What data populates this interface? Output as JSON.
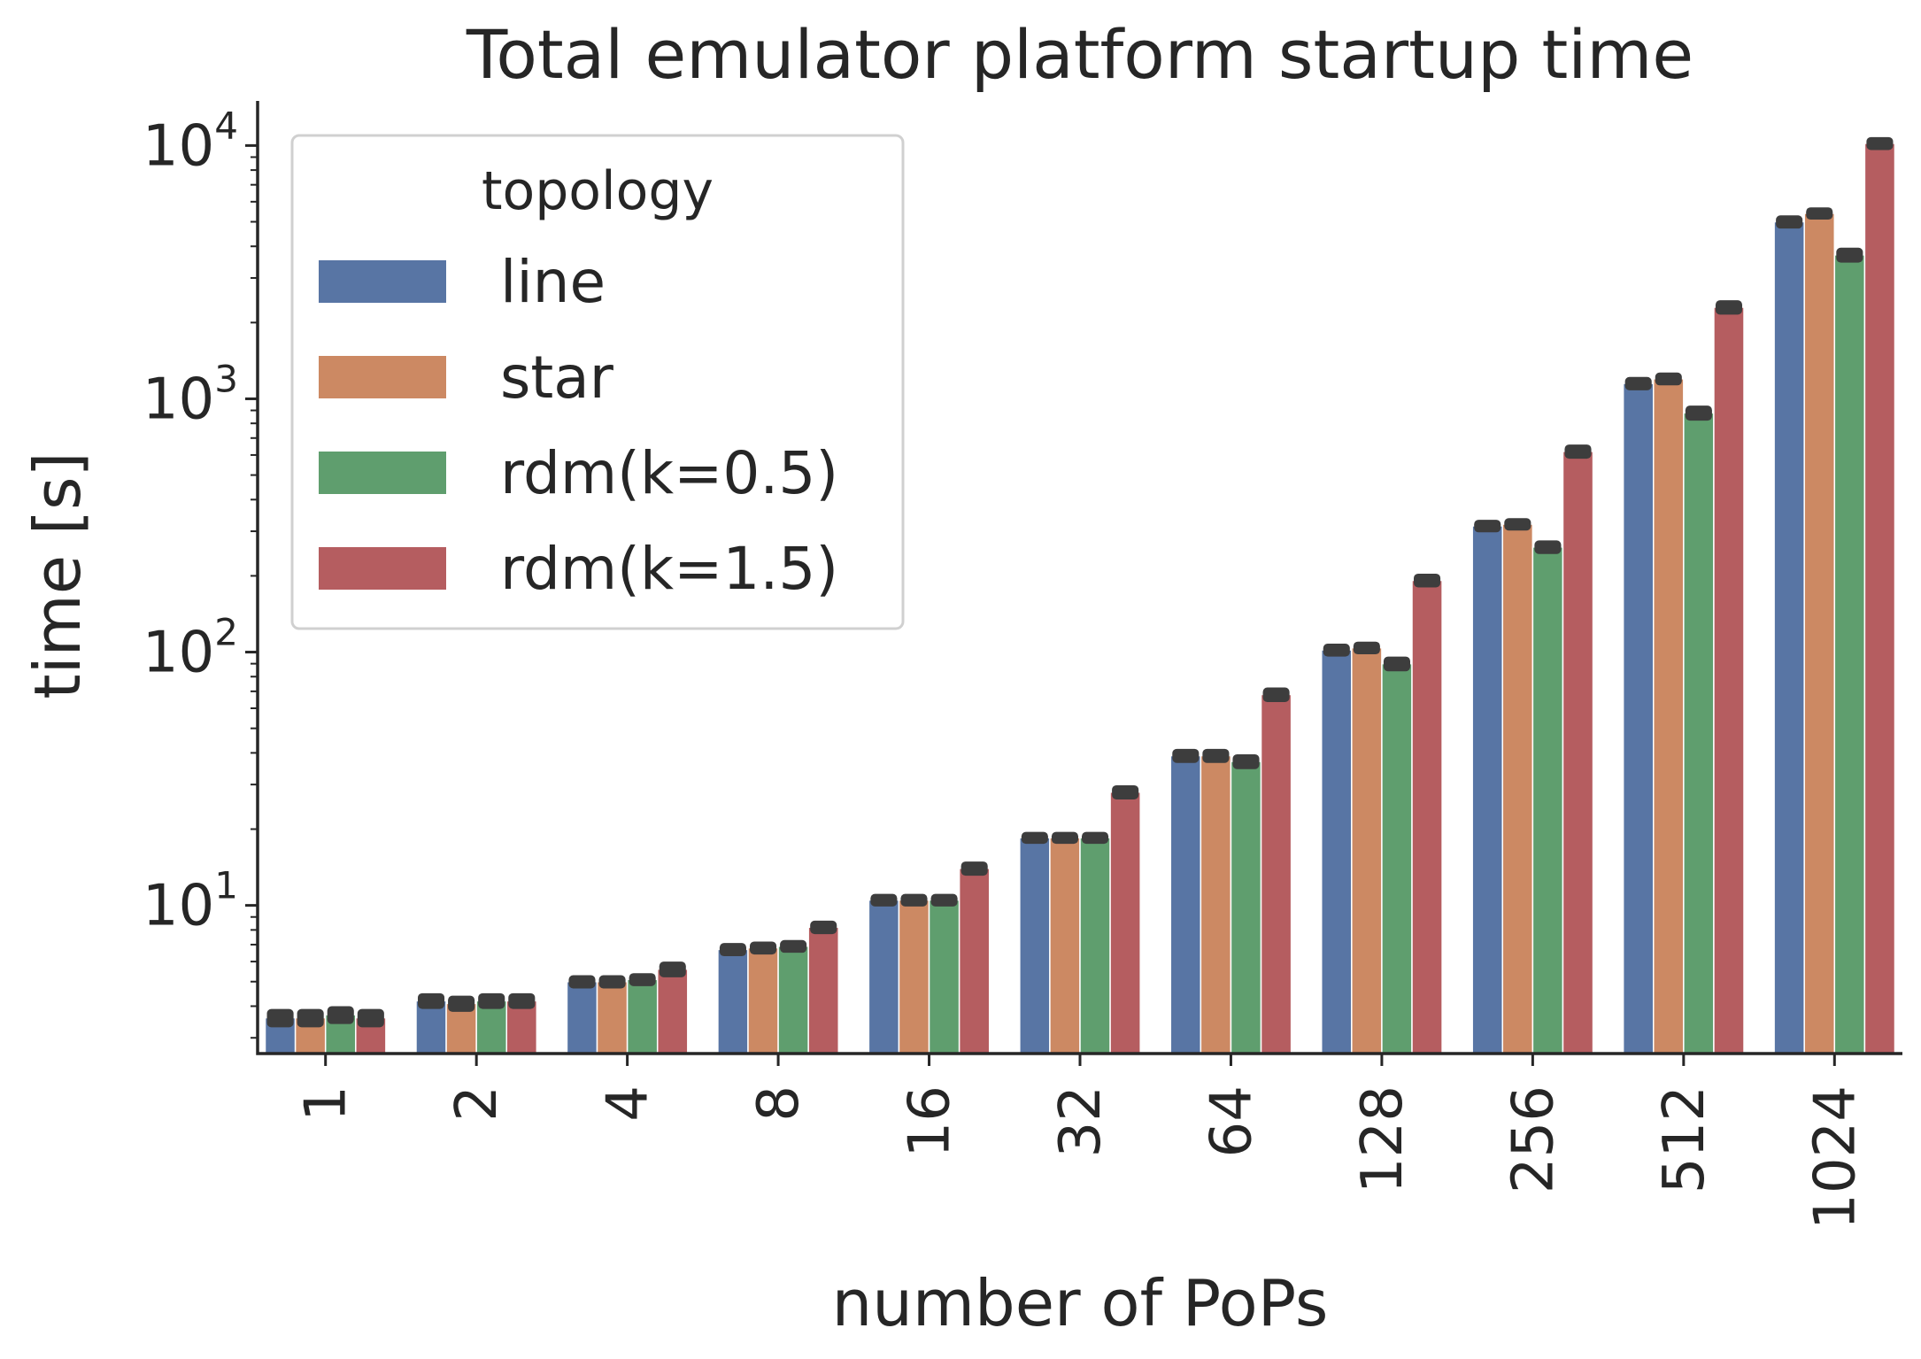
{
  "chart_data": {
    "type": "bar",
    "title": "Total emulator platform startup time",
    "xlabel": "number of PoPs",
    "ylabel": "time [s]",
    "yscale": "log",
    "ylim": [
      2.6,
      15000
    ],
    "yticks": [
      {
        "value": 10,
        "base": "10",
        "exp": "1"
      },
      {
        "value": 100,
        "base": "10",
        "exp": "2"
      },
      {
        "value": 1000,
        "base": "10",
        "exp": "3"
      },
      {
        "value": 10000,
        "base": "10",
        "exp": "4"
      }
    ],
    "categories": [
      "1",
      "2",
      "4",
      "8",
      "16",
      "32",
      "64",
      "128",
      "256",
      "512",
      "1024"
    ],
    "series": [
      {
        "name": "line",
        "color": "#5875a4",
        "values": [
          3.6,
          4.2,
          5.0,
          6.7,
          10.5,
          18.5,
          39,
          102,
          315,
          1150,
          5000
        ],
        "errors": [
          0.3,
          0.3,
          0.3,
          0.4,
          0.6,
          1.0,
          2.5,
          6,
          18,
          70,
          300
        ]
      },
      {
        "name": "star",
        "color": "#cc8963",
        "values": [
          3.6,
          4.1,
          5.0,
          6.8,
          10.5,
          18.5,
          39,
          104,
          320,
          1200,
          5400
        ],
        "errors": [
          0.3,
          0.3,
          0.3,
          0.4,
          0.6,
          1.0,
          2.5,
          6,
          18,
          70,
          300
        ]
      },
      {
        "name": "rdm(k=0.5)",
        "color": "#5f9e6e",
        "values": [
          3.7,
          4.2,
          5.1,
          6.9,
          10.5,
          18.5,
          37,
          90,
          260,
          880,
          3700
        ],
        "errors": [
          0.3,
          0.3,
          0.3,
          0.4,
          0.6,
          1.0,
          2.5,
          6,
          16,
          60,
          250
        ]
      },
      {
        "name": "rdm(k=1.5)",
        "color": "#b55d60",
        "values": [
          3.6,
          4.2,
          5.6,
          8.2,
          14.0,
          28,
          68,
          192,
          620,
          2300,
          10200
        ],
        "errors": [
          0.3,
          0.3,
          0.4,
          0.5,
          0.9,
          1.8,
          4.5,
          12,
          40,
          150,
          600
        ]
      }
    ],
    "legend": {
      "title": "topology",
      "position": "upper-left"
    },
    "grid": false
  }
}
